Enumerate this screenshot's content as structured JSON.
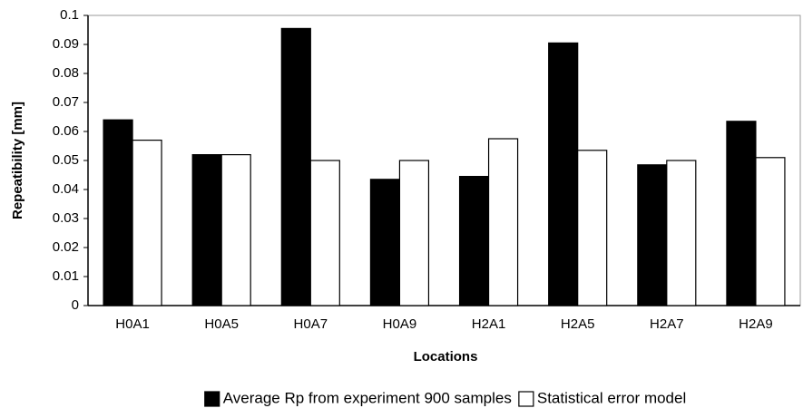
{
  "chart_data": {
    "type": "bar",
    "categories": [
      "H0A1",
      "H0A5",
      "H0A7",
      "H0A9",
      "H2A1",
      "H2A5",
      "H2A7",
      "H2A9"
    ],
    "series": [
      {
        "name": "Average Rp from experiment 900 samples",
        "color": "#000000",
        "values": [
          0.064,
          0.052,
          0.0955,
          0.0435,
          0.0445,
          0.0905,
          0.0485,
          0.0635
        ]
      },
      {
        "name": "Statistical error model",
        "color": "#ffffff",
        "values": [
          0.057,
          0.052,
          0.05,
          0.05,
          0.0575,
          0.0535,
          0.05,
          0.051
        ]
      }
    ],
    "xlabel": "Locations",
    "ylabel": "Repeatibility [mm]",
    "ylim": [
      0,
      0.1
    ],
    "yticks": [
      0,
      0.01,
      0.02,
      0.03,
      0.04,
      0.05,
      0.06,
      0.07,
      0.08,
      0.09,
      0.1
    ],
    "grid": false,
    "legend": "bottom"
  }
}
